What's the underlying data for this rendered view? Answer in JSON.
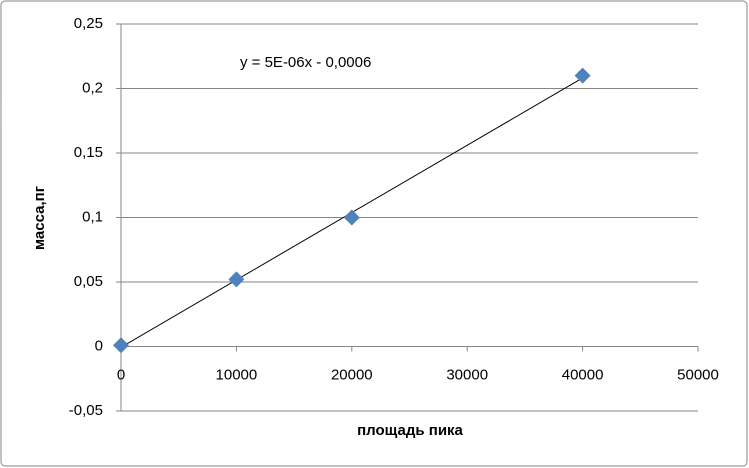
{
  "chart_data": {
    "type": "scatter",
    "x_label": "площадь пика",
    "y_label": "масса,пг",
    "trendline": true,
    "trendline_equation": "y = 5E-06x - 0,0006",
    "series": [
      {
        "color": "#4f81bd",
        "x": [
          0,
          10000,
          20000,
          40000
        ],
        "values": [
          0.001,
          0.052,
          0.1,
          0.21
        ]
      }
    ],
    "xlim": [
      0,
      50000
    ],
    "xticks": [
      0,
      10000,
      20000,
      30000,
      40000,
      50000
    ],
    "ylim": [
      -0.05,
      0.25
    ],
    "yticks": [
      {
        "value": -0.05,
        "label": "-0,05"
      },
      0,
      {
        "value": 0.05,
        "label": "0,05"
      },
      {
        "value": 0.1,
        "label": "0,1"
      },
      {
        "value": 0.15,
        "label": "0,15"
      },
      {
        "value": 0.2,
        "label": "0,2"
      },
      {
        "value": 0.25,
        "label": "0,25"
      }
    ],
    "grid": true
  }
}
